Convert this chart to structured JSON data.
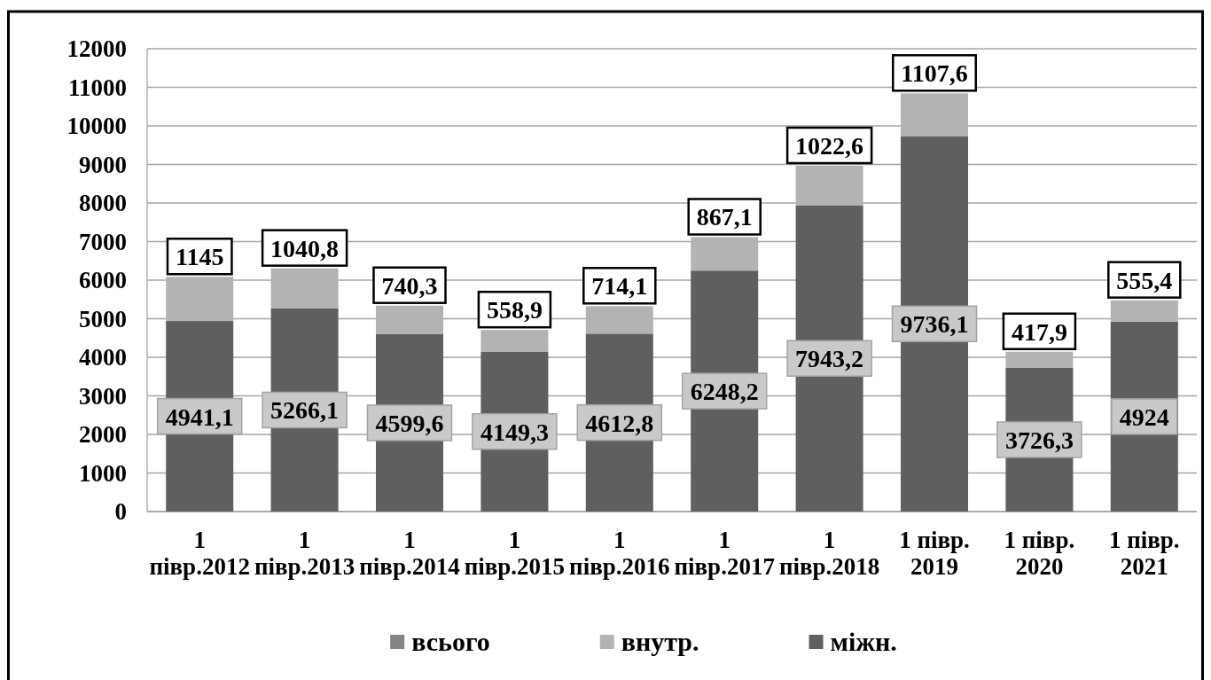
{
  "chart_data": {
    "type": "bar",
    "stacked": true,
    "categories": [
      "1 півр.2012",
      "1 півр.2013",
      "1 півр.2014",
      "1 півр.2015",
      "1 півр.2016",
      "1 півр.2017",
      "1 півр.2018",
      "1 півр. 2019",
      "1 півр. 2020",
      "1 півр. 2021"
    ],
    "series": [
      {
        "name": "міжн.",
        "color": "#5f5f5f",
        "values": [
          4941.1,
          5266.1,
          4599.6,
          4149.3,
          4612.8,
          6248.2,
          7943.2,
          9736.1,
          3726.3,
          4924
        ],
        "value_labels": [
          "4941,1",
          "5266,1",
          "4599,6",
          "4149,3",
          "4612,8",
          "6248,2",
          "7943,2",
          "9736,1",
          "3726,3",
          "4924"
        ]
      },
      {
        "name": "внутр.",
        "color": "#b3b3b3",
        "values": [
          1145,
          1040.8,
          740.3,
          558.9,
          714.1,
          867.1,
          1022.6,
          1107.6,
          417.9,
          555.4
        ],
        "value_labels": [
          "1145",
          "1040,8",
          "740,3",
          "558,9",
          "714,1",
          "867,1",
          "1022,6",
          "1107,6",
          "417,9",
          "555,4"
        ]
      },
      {
        "name": "всього",
        "color": "#858585",
        "values": [
          null,
          null,
          null,
          null,
          null,
          null,
          null,
          null,
          null,
          null
        ]
      }
    ],
    "ylim": [
      0,
      12000
    ],
    "yticks": [
      0,
      1000,
      2000,
      3000,
      4000,
      5000,
      6000,
      7000,
      8000,
      9000,
      10000,
      11000,
      12000
    ],
    "grid": "y",
    "legend": "bottom"
  }
}
